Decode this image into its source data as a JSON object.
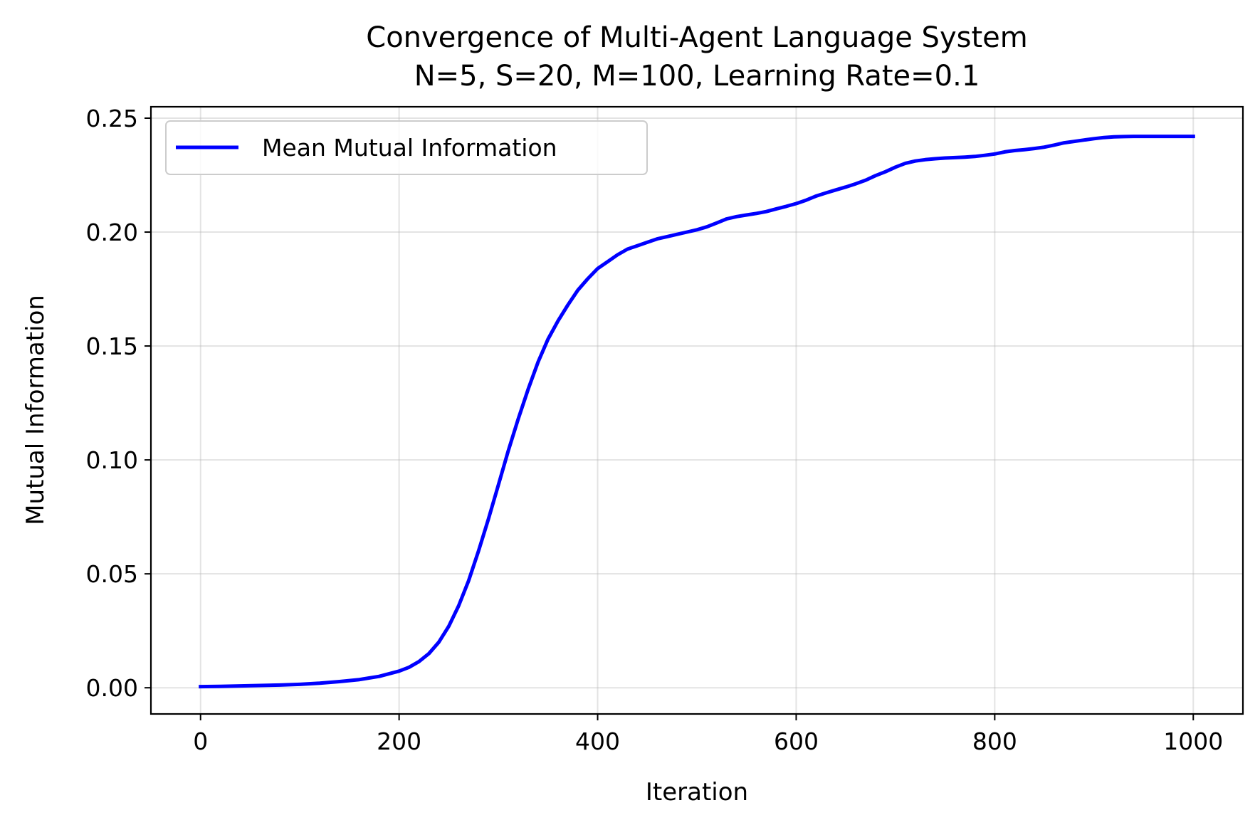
{
  "chart_data": {
    "type": "line",
    "title": "Convergence of Multi-Agent Language System",
    "subtitle": "N=5, S=20, M=100, Learning Rate=0.1",
    "xlabel": "Iteration",
    "ylabel": "Mutual Information",
    "xlim": [
      -50,
      1050
    ],
    "ylim": [
      -0.0115,
      0.255
    ],
    "xticks": [
      0,
      200,
      400,
      600,
      800,
      1000
    ],
    "xtick_labels": [
      "0",
      "200",
      "400",
      "600",
      "800",
      "1000"
    ],
    "yticks": [
      0.0,
      0.05,
      0.1,
      0.15,
      0.2,
      0.25
    ],
    "ytick_labels": [
      "0.00",
      "0.05",
      "0.10",
      "0.15",
      "0.20",
      "0.25"
    ],
    "grid": true,
    "legend_position": "upper-left",
    "series": [
      {
        "name": "Mean Mutual Information",
        "color": "#0000ff",
        "x": [
          0,
          20,
          40,
          60,
          80,
          100,
          120,
          140,
          160,
          180,
          200,
          210,
          220,
          230,
          240,
          250,
          260,
          270,
          280,
          290,
          300,
          310,
          320,
          330,
          340,
          350,
          360,
          370,
          380,
          390,
          400,
          410,
          420,
          430,
          440,
          450,
          460,
          470,
          480,
          490,
          500,
          510,
          520,
          530,
          540,
          550,
          560,
          570,
          580,
          590,
          600,
          610,
          620,
          630,
          640,
          650,
          660,
          670,
          680,
          690,
          700,
          710,
          720,
          730,
          740,
          750,
          760,
          770,
          780,
          790,
          800,
          810,
          820,
          830,
          840,
          850,
          860,
          870,
          880,
          890,
          900,
          910,
          920,
          930,
          940,
          950,
          960,
          970,
          980,
          990,
          1000
        ],
        "y": [
          0.0005,
          0.0006,
          0.0008,
          0.001,
          0.0012,
          0.0015,
          0.002,
          0.0027,
          0.0036,
          0.005,
          0.0073,
          0.009,
          0.0115,
          0.015,
          0.02,
          0.027,
          0.036,
          0.047,
          0.06,
          0.074,
          0.089,
          0.104,
          0.118,
          0.131,
          0.143,
          0.153,
          0.161,
          0.168,
          0.1745,
          0.1795,
          0.184,
          0.187,
          0.19,
          0.1925,
          0.194,
          0.1955,
          0.197,
          0.198,
          0.199,
          0.2,
          0.201,
          0.2023,
          0.204,
          0.2058,
          0.2068,
          0.2075,
          0.2082,
          0.209,
          0.2102,
          0.2113,
          0.2125,
          0.214,
          0.2158,
          0.2172,
          0.2185,
          0.2198,
          0.2212,
          0.2228,
          0.2248,
          0.2265,
          0.2285,
          0.2302,
          0.2312,
          0.2318,
          0.2322,
          0.2325,
          0.2327,
          0.2329,
          0.2332,
          0.2337,
          0.2343,
          0.2352,
          0.2358,
          0.2362,
          0.2367,
          0.2373,
          0.2382,
          0.2392,
          0.2398,
          0.2404,
          0.241,
          0.2415,
          0.2418,
          0.2419,
          0.242,
          0.242,
          0.242,
          0.242,
          0.242,
          0.242,
          0.242
        ]
      }
    ]
  }
}
